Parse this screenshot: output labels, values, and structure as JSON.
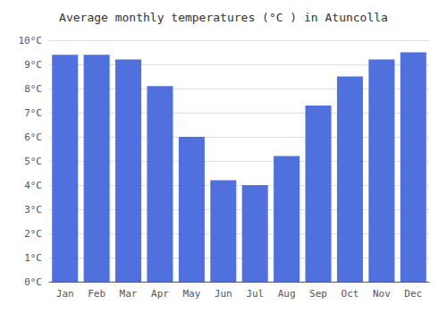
{
  "chart_data": {
    "type": "bar",
    "title": "Average monthly temperatures (°C ) in Atuncolla",
    "categories": [
      "Jan",
      "Feb",
      "Mar",
      "Apr",
      "May",
      "Jun",
      "Jul",
      "Aug",
      "Sep",
      "Oct",
      "Nov",
      "Dec"
    ],
    "values": [
      9.4,
      9.4,
      9.2,
      8.1,
      6.0,
      4.2,
      4.0,
      5.2,
      7.3,
      8.5,
      9.2,
      9.5
    ],
    "ylim": [
      0,
      10
    ],
    "yticks": [
      {
        "value": 0,
        "label": "0°C"
      },
      {
        "value": 1,
        "label": "1°C"
      },
      {
        "value": 2,
        "label": "2°C"
      },
      {
        "value": 3,
        "label": "3°C"
      },
      {
        "value": 4,
        "label": "4°C"
      },
      {
        "value": 5,
        "label": "5°C"
      },
      {
        "value": 6,
        "label": "6°C"
      },
      {
        "value": 7,
        "label": "7°C"
      },
      {
        "value": 8,
        "label": "8°C"
      },
      {
        "value": 9,
        "label": "9°C"
      },
      {
        "value": 10,
        "label": "10°C"
      }
    ],
    "grid": true
  }
}
